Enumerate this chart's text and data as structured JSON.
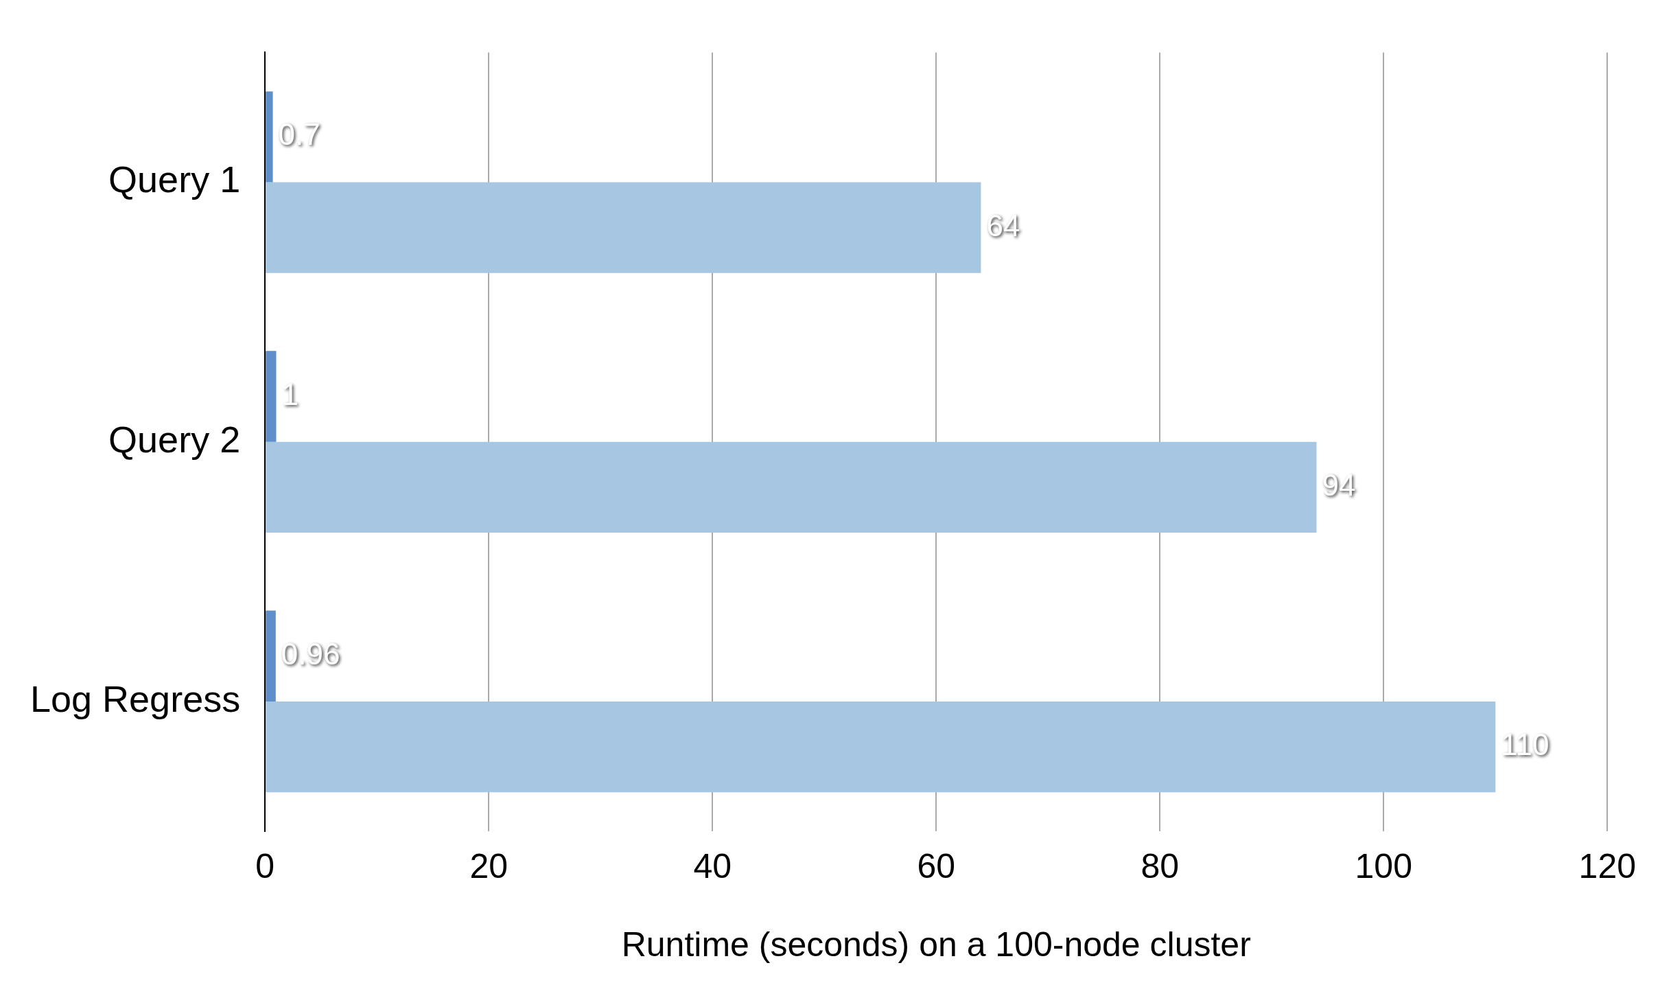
{
  "chart_data": {
    "type": "bar",
    "orientation": "horizontal",
    "categories": [
      "Query 1",
      "Query 2",
      "Log Regress"
    ],
    "series": [
      {
        "color": "#5f8fcb",
        "values": [
          0.7,
          1,
          0.96
        ]
      },
      {
        "color": "#a7c6e2",
        "values": [
          64,
          94,
          110
        ]
      }
    ],
    "xlabel": "Runtime (seconds) on a 100-node cluster",
    "xlim": [
      0,
      120
    ],
    "xticks": [
      0,
      20,
      40,
      60,
      80,
      100,
      120
    ],
    "grid": "x",
    "legend": false,
    "data_labels": true
  }
}
